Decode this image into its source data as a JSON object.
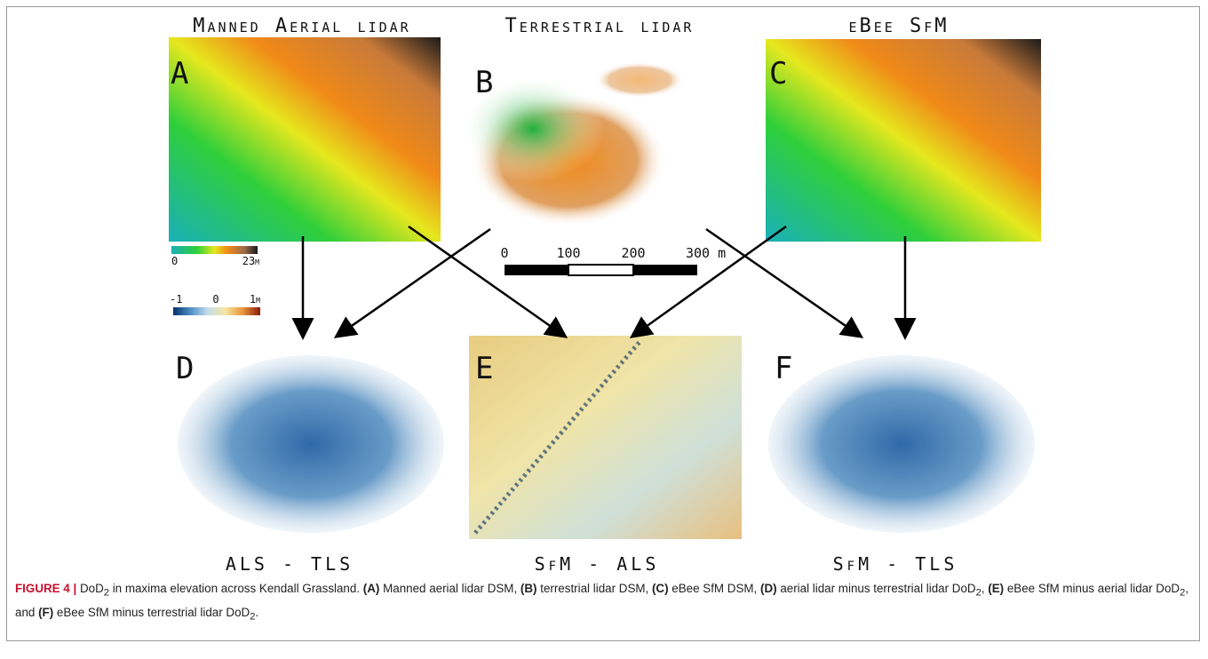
{
  "panels": {
    "titles": [
      "Manned Aerial lidar",
      "Terrestrial lidar",
      "eBee SfM"
    ],
    "letters": [
      "A",
      "B",
      "C",
      "D",
      "E",
      "F"
    ],
    "differences": [
      "ALS - TLS",
      "SfM - ALS",
      "SfM - TLS"
    ]
  },
  "elevation_colorbar": {
    "min_label": "0",
    "max_label": "23m"
  },
  "difference_colorbar": {
    "labels": [
      "-1",
      "0",
      "1m"
    ]
  },
  "scale_bar": {
    "labels": [
      "0",
      "100",
      "200",
      "300 m"
    ]
  },
  "caption": {
    "runs": [
      {
        "text": "FIGURE 4 | ",
        "bold": true
      },
      {
        "text": "DoD"
      },
      {
        "text": "2",
        "sub": true
      },
      {
        "text": " in maxima elevation across Kendall Grassland. "
      },
      {
        "text": "(A)",
        "bold": true
      },
      {
        "text": " Manned aerial lidar DSM, "
      },
      {
        "text": "(B)",
        "bold": true
      },
      {
        "text": " terrestrial lidar DSM, "
      },
      {
        "text": "(C)",
        "bold": true
      },
      {
        "text": " eBee SfM DSM, "
      },
      {
        "text": "(D)",
        "bold": true
      },
      {
        "text": " aerial lidar minus terrestrial lidar DoD"
      },
      {
        "text": "2",
        "sub": true
      },
      {
        "text": ", "
      },
      {
        "text": "(E)",
        "bold": true
      },
      {
        "text": " eBee SfM minus aerial lidar DoD"
      },
      {
        "text": "2",
        "sub": true
      },
      {
        "text": ", and "
      },
      {
        "text": "(F)",
        "bold": true
      },
      {
        "text": " eBee SfM minus terrestrial lidar DoD"
      },
      {
        "text": "2",
        "sub": true
      },
      {
        "text": "."
      }
    ]
  }
}
